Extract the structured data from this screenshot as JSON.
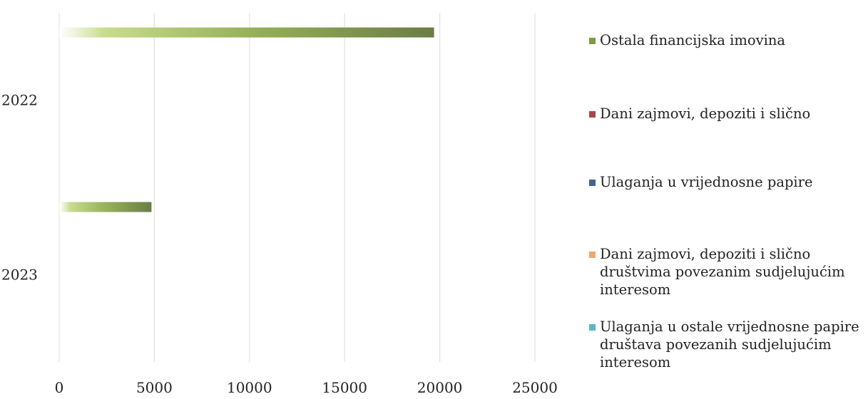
{
  "chart_data": {
    "type": "bar",
    "orientation": "horizontal",
    "categories": [
      "2022",
      "2023"
    ],
    "series": [
      {
        "name": "Ostala financijska imovina",
        "color": "#7f9a45",
        "values": [
          19700,
          4850
        ]
      },
      {
        "name": "Dani zajmovi, depoziti i slično",
        "color": "#a8474b",
        "values": [
          0,
          0
        ]
      },
      {
        "name": "Ulaganja u vrijednosne papire",
        "color": "#3e6690",
        "values": [
          0,
          0
        ]
      },
      {
        "name": "Dani zajmovi, depoziti i slično\ndruštvima povezanim sudjelujućim\ninteresom",
        "color": "#f2a56a",
        "values": [
          0,
          0
        ]
      },
      {
        "name": "Ulaganja u ostale vrijednosne papire\ndruštava povezanih sudjelujućim\ninteresom",
        "color": "#5ab7c9",
        "values": [
          0,
          0
        ]
      }
    ],
    "x_ticks": [
      "0",
      "5000",
      "10000",
      "15000",
      "20000",
      "25000"
    ],
    "xlim": [
      0,
      25000
    ],
    "grid": true,
    "legend_position": "right"
  }
}
